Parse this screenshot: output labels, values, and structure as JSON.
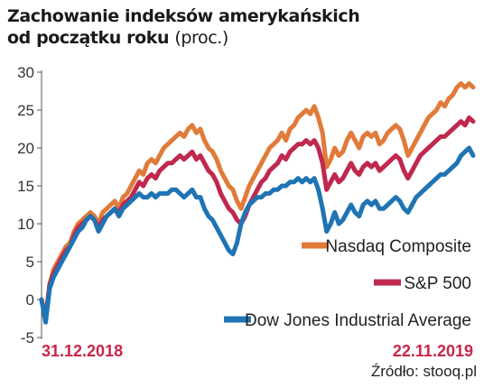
{
  "chart_data": {
    "type": "line",
    "title_line1": "Zachowanie indeksów amerykańskich",
    "title_line2": "od początku roku",
    "title_unit": "(proc.)",
    "ylim": [
      -5,
      30
    ],
    "yticks": [
      "-5",
      "0",
      "5",
      "10",
      "15",
      "20",
      "25",
      "30"
    ],
    "grid": false,
    "legend_position": "bottom-right",
    "x_start_label": "31.12.2018",
    "x_end_label": "22.11.2019",
    "source": "Źródło: stooq.pl",
    "colors": {
      "nasdaq": "#e07b39",
      "sp500": "#c0284e",
      "dow": "#1f74b4",
      "dates": "#c8264a"
    },
    "series": [
      {
        "name": "Nasdaq Composite",
        "color": "#e07b39",
        "values": [
          0,
          -2.5,
          2,
          4,
          5,
          6,
          7,
          7.5,
          9,
          10,
          10.5,
          11,
          11.5,
          11,
          10,
          11.5,
          12,
          12.5,
          13,
          12,
          13.5,
          14,
          15,
          16,
          17,
          16.5,
          18,
          18.5,
          18,
          19,
          20,
          20.5,
          21,
          21.5,
          22,
          21.5,
          22.5,
          23,
          22,
          22.5,
          21,
          20,
          19.5,
          18.5,
          17,
          16,
          15,
          14.5,
          13,
          12,
          13.5,
          15,
          16,
          17,
          18,
          19,
          20,
          20.5,
          21,
          22,
          21,
          22.5,
          23,
          24,
          24.5,
          25,
          24.5,
          25.5,
          24,
          22,
          17.5,
          18.5,
          20,
          19,
          19.5,
          21,
          22,
          21,
          20,
          21.5,
          22,
          21.5,
          22,
          20.5,
          21,
          22,
          22.5,
          23,
          22.5,
          21,
          19,
          20,
          21,
          22,
          23,
          24,
          24.5,
          25,
          26,
          25.5,
          26.5,
          27,
          28,
          28.5,
          28,
          28.5,
          28
        ]
      },
      {
        "name": "S&P 500",
        "color": "#c0284e",
        "values": [
          0,
          -2.5,
          2,
          3.5,
          4.5,
          5.5,
          6.5,
          7,
          8.5,
          9.5,
          10,
          10.5,
          11,
          10.5,
          9.5,
          10.5,
          11,
          11.5,
          12,
          11.5,
          12.5,
          13,
          13.5,
          14.5,
          15.5,
          15,
          16,
          16.5,
          16,
          17,
          17.5,
          18,
          18,
          18.5,
          19,
          18.5,
          19,
          19.5,
          18.5,
          19,
          18,
          17,
          16.5,
          15.5,
          14,
          13,
          12,
          11.5,
          10.5,
          10,
          11,
          12.5,
          13.5,
          14.5,
          15.5,
          16,
          17,
          17.5,
          18,
          19,
          18.5,
          19.5,
          20,
          20.5,
          20.5,
          21,
          20.5,
          21,
          20,
          18,
          14.5,
          15.5,
          16.5,
          15.5,
          16,
          17,
          18,
          17,
          16.5,
          17.5,
          18,
          17.5,
          18,
          17,
          17.5,
          18,
          18.5,
          19,
          18.5,
          17,
          16,
          17,
          18,
          19,
          19.5,
          20,
          20.5,
          21,
          21.5,
          21.5,
          22,
          22.5,
          23,
          23.5,
          23,
          24,
          23.5
        ]
      },
      {
        "name": "Dow Jones Industrial Average",
        "color": "#1f74b4",
        "values": [
          0,
          -3,
          1.5,
          3,
          4,
          5,
          6,
          7,
          8,
          9,
          9.5,
          10.5,
          11,
          10.5,
          9,
          10,
          11,
          11.5,
          12,
          11,
          12,
          12.5,
          13,
          13.5,
          14,
          13.5,
          13.5,
          14,
          13.5,
          14,
          14,
          14,
          14.5,
          14.5,
          14,
          13.5,
          14,
          14.5,
          13.5,
          13.5,
          12,
          11,
          10.5,
          9.5,
          8.5,
          7.5,
          6.5,
          6,
          7.5,
          10,
          11.5,
          12.5,
          13,
          13.5,
          13.5,
          14,
          14,
          14.5,
          14.5,
          15,
          15,
          15.5,
          15.5,
          16,
          15.5,
          16,
          15.5,
          16,
          14.5,
          12,
          9,
          10,
          11.5,
          10,
          10.5,
          11.5,
          12.5,
          11.5,
          11,
          12.5,
          13,
          12.5,
          13,
          12,
          12,
          12.5,
          13,
          13.5,
          13,
          12,
          11.5,
          12.5,
          13.5,
          14,
          14.5,
          15,
          15.5,
          16,
          16.5,
          16.5,
          17,
          17.5,
          18,
          19,
          19.5,
          20,
          19
        ]
      }
    ]
  }
}
